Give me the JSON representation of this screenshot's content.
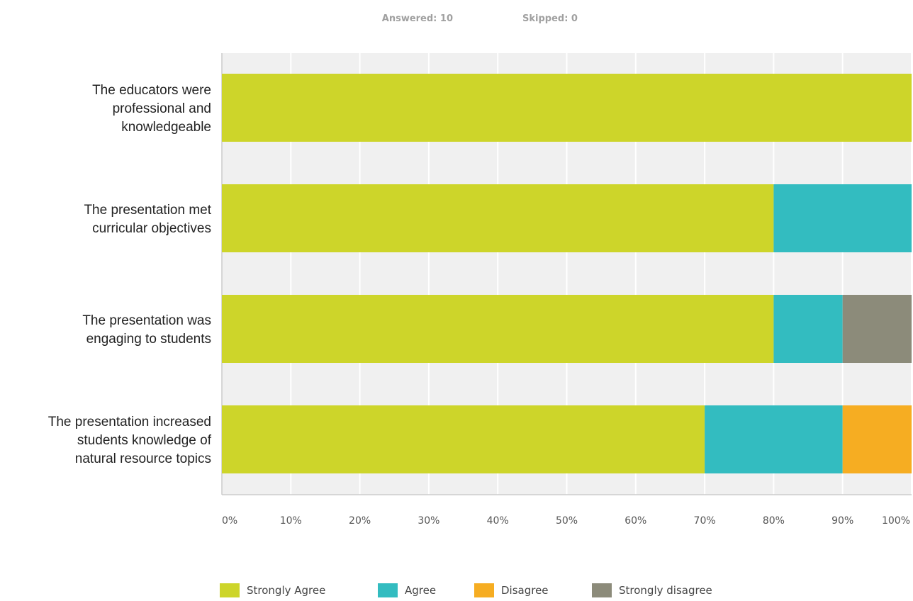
{
  "header": {
    "answered": "Answered: 10",
    "skipped": "Skipped: 0"
  },
  "chart_data": {
    "type": "bar",
    "orientation": "horizontal",
    "stacked": true,
    "categories": [
      [
        "The educators were",
        "professional and",
        "knowledgeable"
      ],
      [
        "The presentation met",
        "curricular objectives"
      ],
      [
        "The presentation was",
        "engaging to students"
      ],
      [
        "The presentation increased",
        "students knowledge of",
        "natural resource topics"
      ]
    ],
    "series": [
      {
        "name": "Strongly Agree",
        "color": "#cdd52a",
        "values": [
          100,
          80,
          80,
          70
        ]
      },
      {
        "name": "Agree",
        "color": "#33bcc0",
        "values": [
          0,
          20,
          10,
          20
        ]
      },
      {
        "name": "Disagree",
        "color": "#f6ad22",
        "values": [
          0,
          0,
          0,
          10
        ]
      },
      {
        "name": "Strongly disagree",
        "color": "#8c8b7a",
        "values": [
          0,
          0,
          10,
          0
        ]
      }
    ],
    "xlim": [
      0,
      100
    ],
    "xticks": [
      "0%",
      "10%",
      "20%",
      "30%",
      "40%",
      "50%",
      "60%",
      "70%",
      "80%",
      "90%",
      "100%"
    ],
    "title": "",
    "xlabel": "",
    "ylabel": "",
    "grid": true,
    "legend_position": "bottom"
  }
}
